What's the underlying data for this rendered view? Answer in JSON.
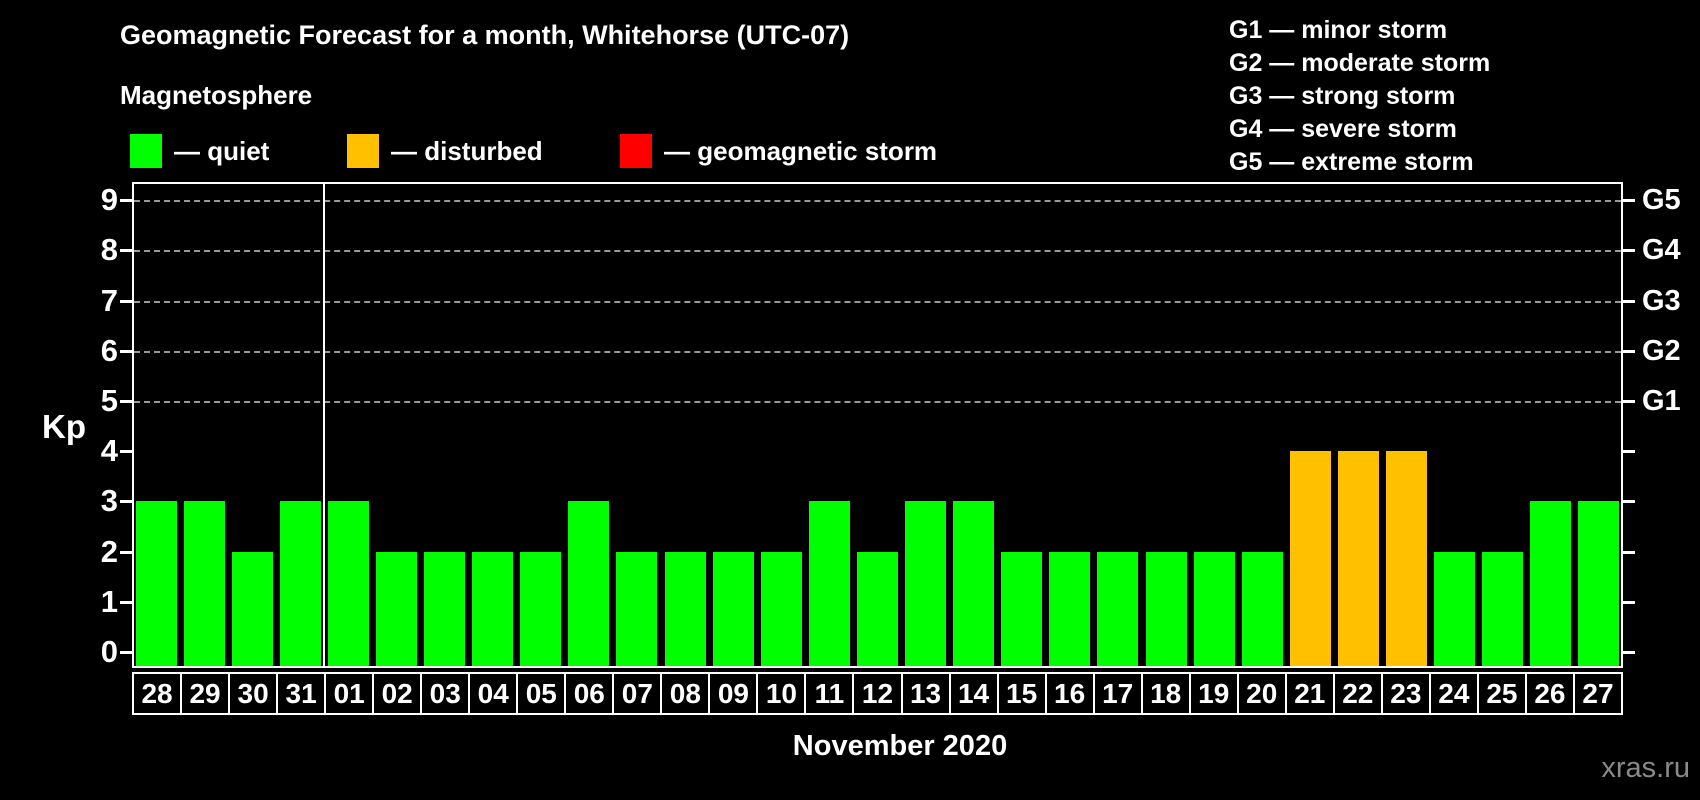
{
  "header": {
    "title": "Geomagnetic Forecast for a month, Whitehorse (UTC-07)",
    "subtitle": "Magnetosphere"
  },
  "legend": {
    "items": [
      {
        "name": "quiet",
        "label": "— quiet",
        "color": "#00FF00"
      },
      {
        "name": "disturbed",
        "label": "— disturbed",
        "color": "#FFC000"
      },
      {
        "name": "storm",
        "label": "— geomagnetic storm",
        "color": "#FF0000"
      }
    ]
  },
  "g_scale_legend": {
    "lines": [
      "G1 — minor storm",
      "G2 — moderate storm",
      "G3 — strong storm",
      "G4 — severe storm",
      "G5 — extreme storm"
    ]
  },
  "footer": {
    "xlabel": "November 2020",
    "watermark": "xras.ru"
  },
  "chart_data": {
    "type": "bar",
    "title": "Geomagnetic Forecast for a month, Whitehorse (UTC-07)",
    "xlabel": "November 2020",
    "ylabel": "Kp",
    "ylim": [
      0,
      9.4
    ],
    "grid": "horizontal dashed gridlines at Kp 5-9 only",
    "legend_position": "top",
    "categories": [
      "28",
      "29",
      "30",
      "31",
      "01",
      "02",
      "03",
      "04",
      "05",
      "06",
      "07",
      "08",
      "09",
      "10",
      "11",
      "12",
      "13",
      "14",
      "15",
      "16",
      "17",
      "18",
      "19",
      "20",
      "21",
      "22",
      "23",
      "24",
      "25",
      "26",
      "27"
    ],
    "values": [
      3,
      3,
      2,
      3,
      3,
      2,
      2,
      2,
      2,
      3,
      2,
      2,
      2,
      2,
      3,
      2,
      3,
      3,
      2,
      2,
      2,
      2,
      2,
      2,
      4,
      4,
      4,
      2,
      2,
      3,
      3
    ],
    "statuses": [
      "quiet",
      "quiet",
      "quiet",
      "quiet",
      "quiet",
      "quiet",
      "quiet",
      "quiet",
      "quiet",
      "quiet",
      "quiet",
      "quiet",
      "quiet",
      "quiet",
      "quiet",
      "quiet",
      "quiet",
      "quiet",
      "quiet",
      "quiet",
      "quiet",
      "quiet",
      "quiet",
      "quiet",
      "disturbed",
      "disturbed",
      "disturbed",
      "quiet",
      "quiet",
      "quiet",
      "quiet"
    ],
    "status_colors": {
      "quiet": "#00FF00",
      "disturbed": "#FFC000",
      "storm": "#FF0000"
    },
    "month_separator_after_index": 3,
    "y_ticks": [
      0,
      1,
      2,
      3,
      4,
      5,
      6,
      7,
      8,
      9
    ],
    "gridline_kp": [
      5,
      6,
      7,
      8,
      9
    ],
    "right_axis_labels": [
      {
        "label": "G1",
        "kp": 5
      },
      {
        "label": "G2",
        "kp": 6
      },
      {
        "label": "G3",
        "kp": 7
      },
      {
        "label": "G4",
        "kp": 8
      },
      {
        "label": "G5",
        "kp": 9
      }
    ]
  }
}
